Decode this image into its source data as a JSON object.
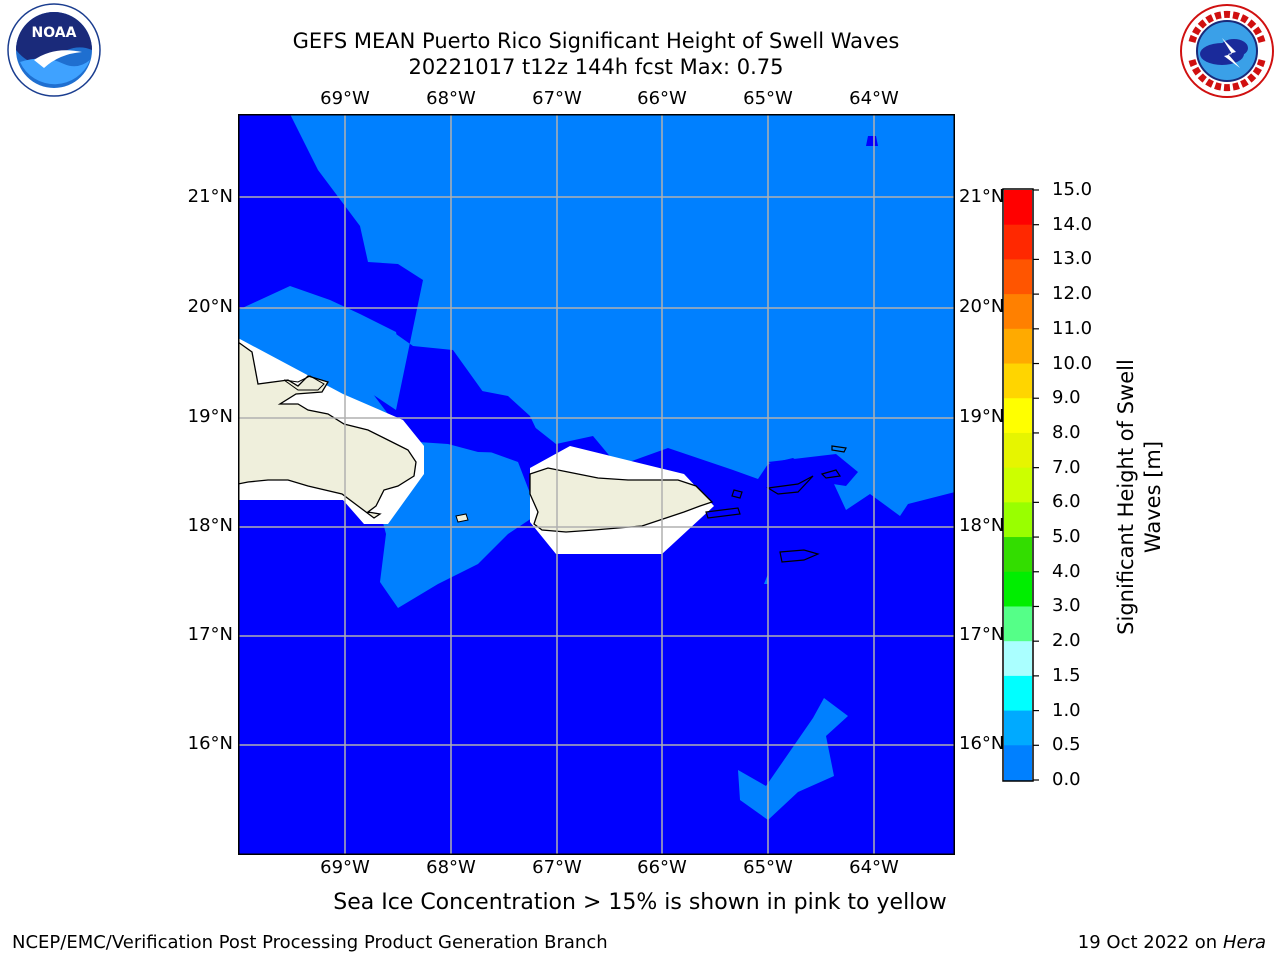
{
  "header": {
    "title_line1": "GEFS MEAN Puerto Rico Significant Height of Swell Waves",
    "title_line2": "20221017 t12z 144h fcst   Max: 0.75"
  },
  "map": {
    "lon_labels": [
      "69°W",
      "68°W",
      "67°W",
      "66°W",
      "65°W",
      "64°W"
    ],
    "lat_labels": [
      "21°N",
      "20°N",
      "19°N",
      "18°N",
      "17°N",
      "16°N"
    ],
    "lon_range": [
      -70,
      -63.25
    ],
    "lat_range": [
      15.0,
      21.75
    ],
    "grid": true,
    "colors": {
      "deep_blue": "#0000ff",
      "light_blue": "#0080ff",
      "land": "#efefdc",
      "masked": "#ffffff",
      "grid": "#b0b0b0"
    }
  },
  "colorbar": {
    "title_line1": "Significant Height of Swell",
    "title_line2": "Waves [m]",
    "ticks": [
      "15.0",
      "14.0",
      "13.0",
      "12.0",
      "11.0",
      "10.0",
      "9.0",
      "8.0",
      "7.0",
      "6.0",
      "5.0",
      "4.0",
      "3.0",
      "2.0",
      "1.5",
      "1.0",
      "0.5",
      "0.0"
    ],
    "colors": [
      "#ff0000",
      "#ff2800",
      "#ff5500",
      "#ff8000",
      "#ffaa00",
      "#ffd500",
      "#ffff00",
      "#e6f500",
      "#ccff00",
      "#99ff00",
      "#33dd00",
      "#00ee00",
      "#55ff88",
      "#aaffff",
      "#55ffff",
      "#00ffff",
      "#00aaff",
      "#0080ff",
      "#0000ff"
    ]
  },
  "note": "Sea Ice Concentration > 15% is shown in pink to yellow",
  "footer": {
    "left": "NCEP/EMC/Verification Post Processing Product Generation Branch",
    "right_prefix": "19 Oct 2022 on ",
    "right_host": "Hera"
  }
}
